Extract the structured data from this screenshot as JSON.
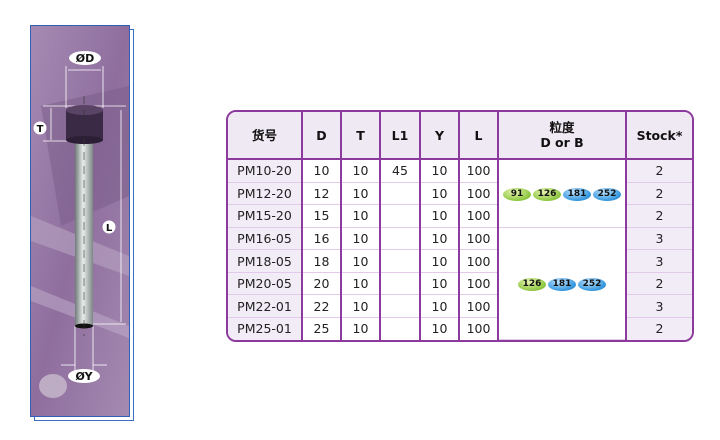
{
  "diagram": {
    "labels": {
      "diameter_d": "ØD",
      "thickness": "T",
      "length": "L",
      "diameter_y": "ØY"
    }
  },
  "table": {
    "headers": [
      "货号",
      "D",
      "T",
      "L1",
      "Y",
      "L",
      "粒度\nD or B",
      "Stock*"
    ],
    "header_grit_line1": "粒度",
    "header_grit_line2": "D or B",
    "rows": [
      {
        "code": "PM10-20",
        "D": "10",
        "T": "10",
        "L1": "45",
        "Y": "10",
        "L": "100",
        "stock": "2"
      },
      {
        "code": "PM12-20",
        "D": "12",
        "T": "10",
        "L1": "",
        "Y": "10",
        "L": "100",
        "stock": "2"
      },
      {
        "code": "PM15-20",
        "D": "15",
        "T": "10",
        "L1": "",
        "Y": "10",
        "L": "100",
        "stock": "2"
      },
      {
        "code": "PM16-05",
        "D": "16",
        "T": "10",
        "L1": "",
        "Y": "10",
        "L": "100",
        "stock": "3"
      },
      {
        "code": "PM18-05",
        "D": "18",
        "T": "10",
        "L1": "",
        "Y": "10",
        "L": "100",
        "stock": "3"
      },
      {
        "code": "PM20-05",
        "D": "20",
        "T": "10",
        "L1": "",
        "Y": "10",
        "L": "100",
        "stock": "2"
      },
      {
        "code": "PM22-01",
        "D": "22",
        "T": "10",
        "L1": "",
        "Y": "10",
        "L": "100",
        "stock": "3"
      },
      {
        "code": "PM25-01",
        "D": "25",
        "T": "10",
        "L1": "",
        "Y": "10",
        "L": "100",
        "stock": "2"
      }
    ],
    "grit_groups": [
      {
        "rows": "PM10-20 to PM15-20",
        "grits": [
          {
            "value": "91",
            "color": "green"
          },
          {
            "value": "126",
            "color": "green"
          },
          {
            "value": "181",
            "color": "blue"
          },
          {
            "value": "252",
            "color": "blue"
          }
        ]
      },
      {
        "rows": "PM16-05 to PM25-01",
        "grits": [
          {
            "value": "126",
            "color": "green"
          },
          {
            "value": "181",
            "color": "blue"
          },
          {
            "value": "252",
            "color": "blue"
          }
        ]
      }
    ]
  },
  "colors": {
    "border": "#8c3a9e",
    "header_bg": "#efe9f4",
    "grit_green": "#8cc63f",
    "grit_blue": "#3b9be0",
    "panel_border": "#2f5fb8"
  }
}
